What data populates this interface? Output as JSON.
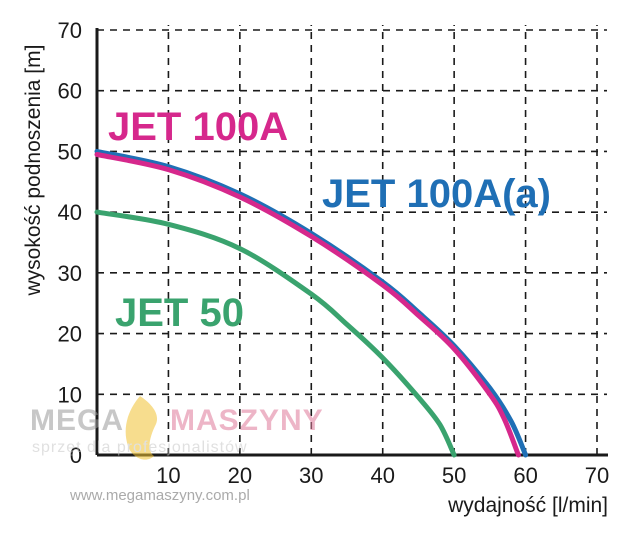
{
  "chart_data": {
    "type": "line",
    "xlabel": "wydajność [l/min]",
    "ylabel": "wysokość podnoszenia [m]",
    "xlim": [
      0,
      70
    ],
    "ylim": [
      0,
      70
    ],
    "x_ticks": [
      "0",
      "10",
      "20",
      "30",
      "40",
      "50",
      "60",
      "70"
    ],
    "y_ticks": [
      "0",
      "10",
      "20",
      "30",
      "40",
      "50",
      "60",
      "70"
    ],
    "grid": "dashed",
    "series": [
      {
        "name": "JET 100A(a)",
        "color": "#1f6fb5",
        "x": [
          0,
          10,
          20,
          30,
          40,
          45,
          50,
          55,
          58,
          60
        ],
        "y": [
          50,
          47.5,
          43,
          36.5,
          28.5,
          23.5,
          18,
          11,
          5.5,
          0
        ]
      },
      {
        "name": "JET 100A",
        "color": "#d6288c",
        "x": [
          0,
          10,
          20,
          30,
          40,
          45,
          50,
          55,
          57,
          59
        ],
        "y": [
          49.5,
          47,
          42.5,
          36,
          28,
          23,
          17.5,
          10,
          6,
          0
        ]
      },
      {
        "name": "JET 50",
        "color": "#3aa36e",
        "x": [
          0,
          10,
          20,
          30,
          35,
          40,
          45,
          48,
          50
        ],
        "y": [
          40,
          38,
          34,
          26.5,
          21.5,
          16,
          9.5,
          5,
          0
        ]
      }
    ]
  },
  "watermark": {
    "brand_left": "MEGA",
    "brand_right": "MASZYNY",
    "tagline": "sprzęt dla profesjonalistów",
    "url": "www.megamaszyny.com.pl"
  }
}
